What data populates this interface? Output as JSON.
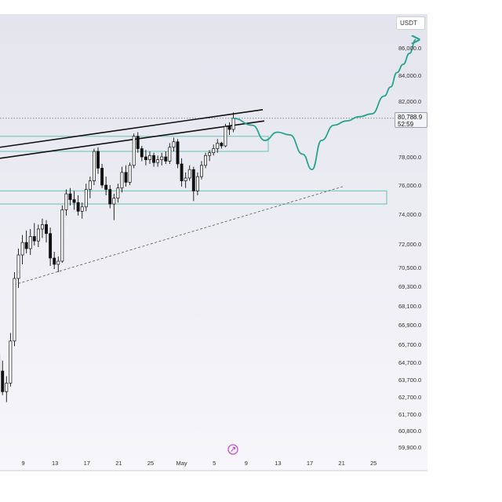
{
  "chart_data": {
    "type": "candlestick",
    "currency": "USDT",
    "current_price": "80,788.9",
    "countdown": "52:59",
    "y_ticks": [
      "86,000.0",
      "84,000.0",
      "82,000.0",
      "78,000.0",
      "76,000.0",
      "74,000.0",
      "72,000.0",
      "70,500.0",
      "69,300.0",
      "68,100.0",
      "66,900.0",
      "65,700.0",
      "64,700.0",
      "63,700.0",
      "62,700.0",
      "61,700.0",
      "60,800.0",
      "59,900.0"
    ],
    "x_ticks": [
      "9",
      "13",
      "17",
      "21",
      "25",
      "May",
      "5",
      "9",
      "13",
      "17",
      "21",
      "25"
    ],
    "candles": [
      [
        65000,
        66600,
        64600,
        66300
      ],
      [
        66300,
        68200,
        66000,
        67800
      ],
      [
        67800,
        67900,
        66300,
        66500
      ],
      [
        66500,
        67200,
        64700,
        65100
      ],
      [
        65100,
        65500,
        63800,
        64200
      ],
      [
        64200,
        64800,
        62800,
        63000
      ],
      [
        63000,
        63900,
        62400,
        63500
      ],
      [
        63500,
        66400,
        63300,
        65900
      ],
      [
        65900,
        70200,
        65600,
        69800
      ],
      [
        69800,
        71700,
        69200,
        71300
      ],
      [
        71300,
        72600,
        70700,
        72100
      ],
      [
        72100,
        72900,
        71400,
        71700
      ],
      [
        71700,
        73000,
        71300,
        72500
      ],
      [
        72500,
        73400,
        71900,
        72200
      ],
      [
        72200,
        73300,
        71800,
        73000
      ],
      [
        73000,
        73700,
        72400,
        73300
      ],
      [
        73300,
        73600,
        72100,
        72700
      ],
      [
        72700,
        73100,
        70600,
        71100
      ],
      [
        71100,
        71500,
        70400,
        70700
      ],
      [
        70700,
        71200,
        70200,
        70900
      ],
      [
        70900,
        74600,
        70800,
        74300
      ],
      [
        74300,
        75700,
        73900,
        75400
      ],
      [
        75400,
        75800,
        74600,
        75000
      ],
      [
        75000,
        75600,
        74300,
        74800
      ],
      [
        74800,
        75300,
        73900,
        74200
      ],
      [
        74200,
        74800,
        73700,
        74500
      ],
      [
        74500,
        76100,
        74200,
        75700
      ],
      [
        75700,
        76600,
        75100,
        76300
      ],
      [
        76300,
        78600,
        76000,
        78400
      ],
      [
        78400,
        78700,
        76800,
        77200
      ],
      [
        77200,
        77500,
        75800,
        76000
      ],
      [
        76000,
        76600,
        75300,
        75700
      ],
      [
        75700,
        76000,
        74400,
        74700
      ],
      [
        74700,
        75400,
        73600,
        75100
      ],
      [
        75100,
        76100,
        74800,
        75800
      ],
      [
        75800,
        77300,
        75500,
        76900
      ],
      [
        76900,
        77400,
        75900,
        76200
      ],
      [
        76200,
        77600,
        76000,
        77400
      ],
      [
        77400,
        79700,
        77200,
        79500
      ],
      [
        79500,
        79800,
        78300,
        78600
      ],
      [
        78600,
        78800,
        77700,
        78000
      ],
      [
        78000,
        78500,
        77400,
        77800
      ],
      [
        77800,
        78400,
        77500,
        78100
      ],
      [
        78100,
        78300,
        77300,
        77600
      ],
      [
        77600,
        78100,
        77300,
        77800
      ],
      [
        77800,
        78300,
        77400,
        78000
      ],
      [
        78000,
        78400,
        77500,
        77700
      ],
      [
        77700,
        79000,
        77500,
        78700
      ],
      [
        78700,
        79400,
        78400,
        79100
      ],
      [
        79100,
        79300,
        77200,
        77500
      ],
      [
        77500,
        77900,
        75900,
        76300
      ],
      [
        76300,
        76900,
        75800,
        76500
      ],
      [
        76500,
        77400,
        76300,
        77100
      ],
      [
        77100,
        77300,
        74900,
        75600
      ],
      [
        75600,
        76900,
        75300,
        76600
      ],
      [
        76600,
        77700,
        76400,
        77400
      ],
      [
        77400,
        78300,
        77200,
        78100
      ],
      [
        78100,
        78500,
        77700,
        78300
      ],
      [
        78300,
        78900,
        78100,
        78600
      ],
      [
        78600,
        79300,
        78300,
        79000
      ],
      [
        79000,
        79100,
        78600,
        78800
      ],
      [
        78800,
        80400,
        78700,
        80200
      ],
      [
        80200,
        80500,
        79600,
        80000
      ],
      [
        80000,
        81200,
        79800,
        80789
      ]
    ],
    "projection": [
      [
        0,
        80789
      ],
      [
        3,
        80300
      ],
      [
        5,
        79200
      ],
      [
        7,
        79800
      ],
      [
        9,
        79600
      ],
      [
        11,
        78200
      ],
      [
        12.5,
        77100
      ],
      [
        14,
        79200
      ],
      [
        16,
        80300
      ],
      [
        18,
        80600
      ],
      [
        20,
        80900
      ],
      [
        22,
        81100
      ],
      [
        24,
        82400
      ],
      [
        25,
        83100
      ],
      [
        26,
        84200
      ],
      [
        27,
        84800
      ],
      [
        28,
        85600
      ],
      [
        29,
        86600
      ]
    ],
    "zones": [
      {
        "price_top": 79500,
        "price_bottom": 78400,
        "color": "#7cc9bd"
      },
      {
        "price_top": 75600,
        "price_bottom": 74700,
        "color": "#7cc9bd"
      }
    ],
    "resistance_line": {
      "from": 78700,
      "to": 81400
    },
    "resistance_line_2": {
      "from": 77900,
      "to": 80600
    },
    "support_line": {
      "from": 69400,
      "to": 75900
    },
    "dotted_level": 80789,
    "colors": {
      "projection": "#2aa38f",
      "candle": "#111111",
      "zone": "#7cc9bd"
    }
  }
}
